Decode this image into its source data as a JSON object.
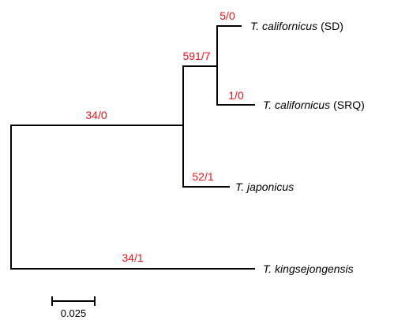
{
  "colors": {
    "branch_line": "#000000",
    "branch_label": "#e8151b",
    "taxon_label": "#000000"
  },
  "branch_labels": {
    "root_to_kingsejongensis": "34/1",
    "root_to_node_a": "34/0",
    "node_a_to_node_b": "591/7",
    "node_a_to_japonicus": "52/1",
    "node_b_to_sd": "5/0",
    "node_b_to_srq": "1/0"
  },
  "taxa": {
    "sd": {
      "species": "T. californicus",
      "population": "(SD)"
    },
    "srq": {
      "species": "T. californicus",
      "population": "(SRQ)"
    },
    "japonicus": {
      "species": "T. japonicus",
      "population": ""
    },
    "kingsejongensis": {
      "species": "T. kingsejongensis",
      "population": ""
    }
  },
  "scale_bar": {
    "label": "0.025"
  }
}
